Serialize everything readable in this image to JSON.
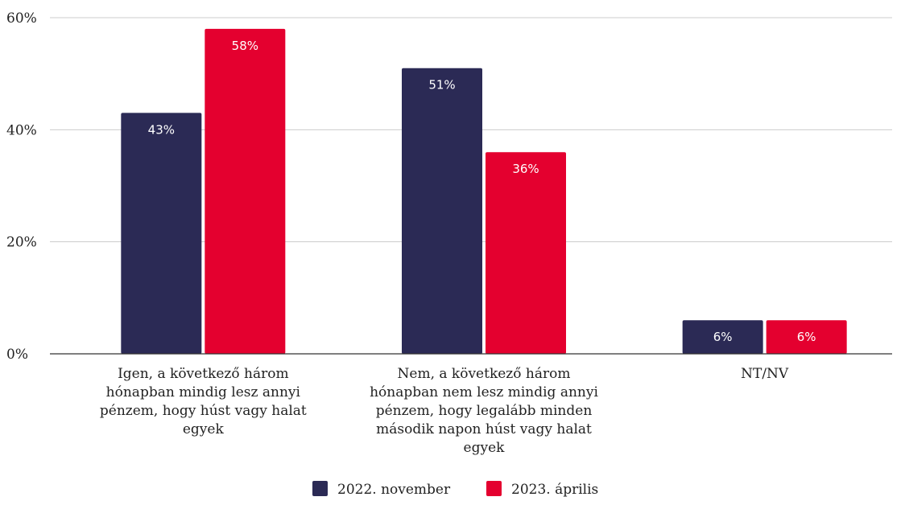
{
  "chart_data": {
    "type": "bar",
    "categories": [
      [
        "Igen, a következő három",
        "hónapban mindig lesz annyi",
        "pénzem, hogy húst vagy halat",
        "egyek"
      ],
      [
        "Nem, a következő három",
        "hónapban nem lesz mindig annyi",
        "pénzem, hogy legalább minden",
        "második napon húst vagy halat",
        "egyek"
      ],
      [
        "NT/NV"
      ]
    ],
    "series": [
      {
        "name": "2022. november",
        "color": "#2b2a55",
        "values": [
          43,
          51,
          6
        ],
        "labels": [
          "43%",
          "51%",
          "6%"
        ]
      },
      {
        "name": "2023. április",
        "color": "#e4002f",
        "values": [
          58,
          36,
          6
        ],
        "labels": [
          "58%",
          "36%",
          "6%"
        ]
      }
    ],
    "ylim": [
      0,
      60
    ],
    "yticks": [
      0,
      20,
      40,
      60
    ],
    "ytick_labels": [
      "0%",
      "20%",
      "40%",
      "60%"
    ],
    "grid": true,
    "legend_position": "bottom-center",
    "title": "",
    "xlabel": "",
    "ylabel": ""
  }
}
